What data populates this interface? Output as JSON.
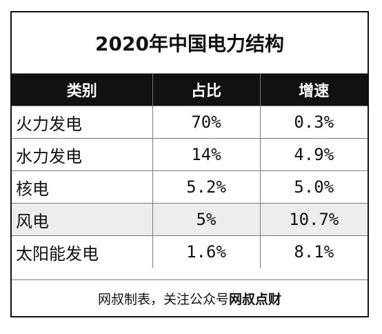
{
  "table": {
    "title": "2020年中国电力结构",
    "headers": [
      "类别",
      "占比",
      "增速"
    ],
    "rows": [
      {
        "category": "火力发电",
        "share": "70%",
        "growth": "0.3%",
        "shaded": false
      },
      {
        "category": "水力发电",
        "share": "14%",
        "growth": "4.9%",
        "shaded": false
      },
      {
        "category": "核电",
        "share": "5.2%",
        "growth": "5.0%",
        "shaded": false
      },
      {
        "category": "风电",
        "share": "5%",
        "growth": "10.7%",
        "shaded": true
      },
      {
        "category": "太阳能发电",
        "share": "1.6%",
        "growth": "8.1%",
        "shaded": false
      }
    ],
    "footer": {
      "text": "网叔制表，关注公众号",
      "brand": "网叔点财"
    }
  },
  "colors": {
    "header_bg": "#111111",
    "header_text": "#ffffff",
    "shaded_row": "#ededed"
  }
}
